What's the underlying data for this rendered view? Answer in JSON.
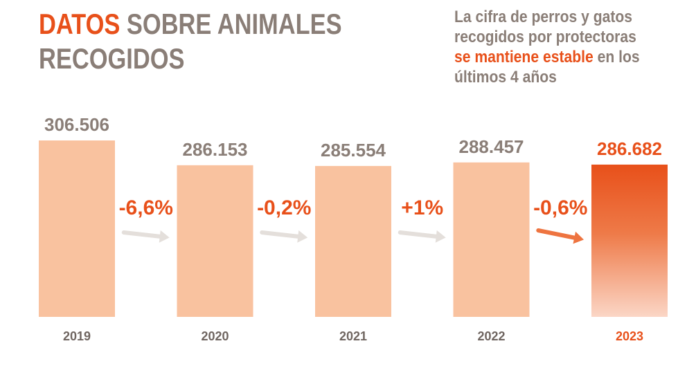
{
  "header": {
    "title_accent": "DATOS",
    "title_rest_1": " SOBRE ANIMALES",
    "title_rest_2": "RECOGIDOS",
    "subtitle_line1": "La cifra de perros y gatos",
    "subtitle_line2": "recogidos por protectoras",
    "subtitle_line3_accent": "se mantiene estable",
    "subtitle_line3_rest": " en los",
    "subtitle_line4": "últimos 4 años"
  },
  "colors": {
    "accent": "#e8501a",
    "bar": "#f9c29f",
    "text_gray": "#8a7e77",
    "arrow_gray": "#e4dfdb"
  },
  "chart_data": {
    "type": "bar",
    "categories": [
      "2019",
      "2020",
      "2021",
      "2022",
      "2023"
    ],
    "values": [
      306506,
      286153,
      285554,
      288457,
      286682
    ],
    "value_labels": [
      "306.506",
      "286.153",
      "285.554",
      "288.457",
      "286.682"
    ],
    "changes": [
      "-6,6%",
      "-0,2%",
      "+1%",
      "-0,6%"
    ],
    "highlight_index": 4,
    "title": "DATOS SOBRE ANIMALES RECOGIDOS",
    "xlabel": "",
    "ylabel": "",
    "grid": false
  }
}
